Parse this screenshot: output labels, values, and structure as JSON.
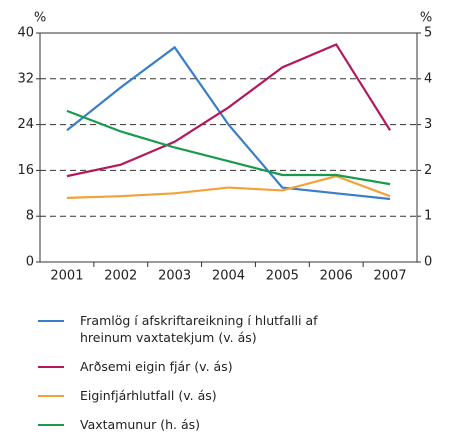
{
  "chart_data": {
    "type": "line",
    "y_label": "%",
    "y2_label": "%",
    "categories": [
      "2001",
      "2002",
      "2003",
      "2004",
      "2005",
      "2006",
      "2007"
    ],
    "ylim": [
      0,
      40
    ],
    "yticks": [
      0,
      8,
      16,
      24,
      32,
      40
    ],
    "y2lim": [
      0,
      5
    ],
    "y2ticks": [
      0,
      1,
      2,
      3,
      4,
      5
    ],
    "grid": true,
    "series": [
      {
        "name": "Framlög í afskriftareikning í hlutfalli af hreinum vaxtatekjum (v. ás)",
        "color": "#3a7dc9",
        "values": [
          23,
          30.5,
          37.5,
          24,
          13,
          12,
          11
        ]
      },
      {
        "name": "Arðsemi eigin fjár (v. ás)",
        "color": "#b5175f",
        "values": [
          15,
          17,
          21,
          27,
          34,
          38,
          23
        ]
      },
      {
        "name": "Eiginfjárhlutfall (v. ás)",
        "color": "#f2a23a",
        "values": [
          11.2,
          11.5,
          12,
          13,
          12.5,
          15,
          11.5
        ]
      },
      {
        "name": "Vaxtamunur (h. ás)",
        "color": "#1a9a4c",
        "axis": "y2",
        "values": [
          3.3,
          2.85,
          2.5,
          2.2,
          1.9,
          1.9,
          1.7
        ]
      }
    ]
  }
}
